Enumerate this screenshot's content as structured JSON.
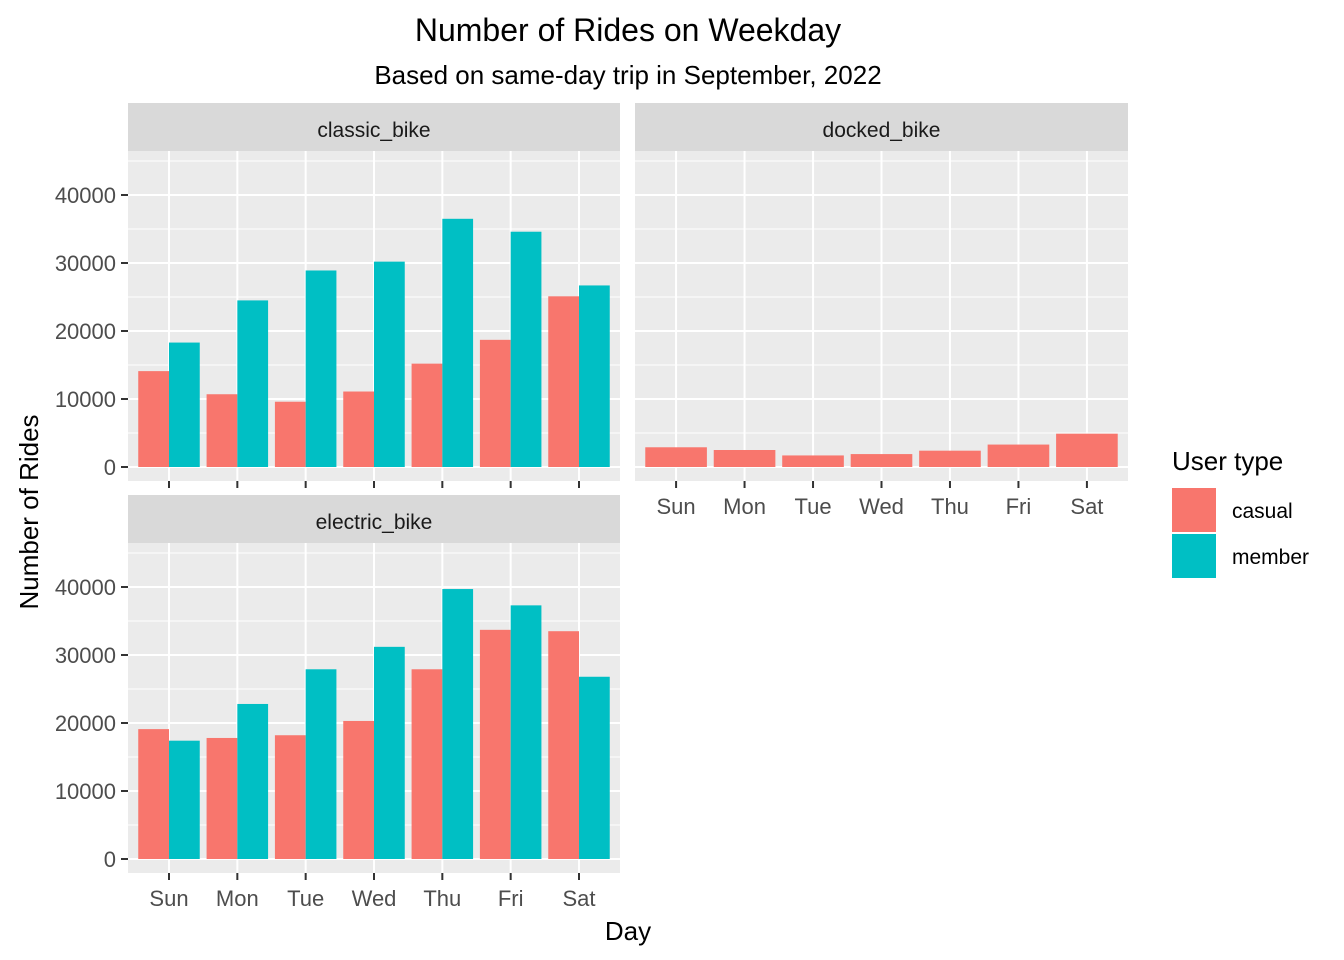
{
  "chart_data": {
    "type": "bar",
    "title": "Number of Rides on Weekday",
    "subtitle": "Based on same-day trip in September, 2022",
    "xlabel": "Day",
    "ylabel": "Number of Rides",
    "categories": [
      "Sun",
      "Mon",
      "Tue",
      "Wed",
      "Thu",
      "Fri",
      "Sat"
    ],
    "ylim": [
      0,
      45000
    ],
    "yticks": [
      0,
      10000,
      20000,
      30000,
      40000
    ],
    "legend": {
      "title": "User type",
      "placement": "right",
      "items": [
        {
          "name": "casual",
          "color": "#F8766D"
        },
        {
          "name": "member",
          "color": "#00BFC4"
        }
      ]
    },
    "facets": [
      {
        "name": "classic_bike",
        "series": [
          {
            "name": "casual",
            "values": [
              14100,
              10700,
              9600,
              11100,
              15200,
              18700,
              25100
            ]
          },
          {
            "name": "member",
            "values": [
              18300,
              24500,
              28900,
              30200,
              36500,
              34600,
              26700
            ]
          }
        ]
      },
      {
        "name": "docked_bike",
        "series": [
          {
            "name": "casual",
            "values": [
              2900,
              2500,
              1700,
              1900,
              2400,
              3300,
              4900
            ]
          }
        ]
      },
      {
        "name": "electric_bike",
        "series": [
          {
            "name": "casual",
            "values": [
              19100,
              17800,
              18200,
              20300,
              27900,
              33700,
              33500
            ]
          },
          {
            "name": "member",
            "values": [
              17400,
              22800,
              27900,
              31200,
              39700,
              37300,
              26800
            ]
          }
        ]
      }
    ]
  }
}
